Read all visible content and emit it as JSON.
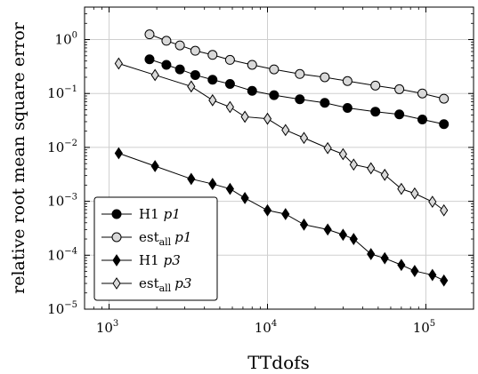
{
  "chart_data": {
    "type": "line",
    "xlabel": "TTdofs",
    "ylabel": "relative root mean square error",
    "xscale": "log",
    "yscale": "log",
    "xlim": [
      700,
      200000
    ],
    "ylim": [
      1e-05,
      4
    ],
    "grid": true,
    "legend_position": "bottom-left",
    "x_ticks": [
      {
        "value": 1000,
        "base": "10",
        "exp": "3"
      },
      {
        "value": 10000,
        "base": "10",
        "exp": "4"
      },
      {
        "value": 100000,
        "base": "10",
        "exp": "5"
      }
    ],
    "y_ticks": [
      {
        "value": 1,
        "base": "10",
        "exp": "0"
      },
      {
        "value": 0.1,
        "base": "10",
        "exp": "−1"
      },
      {
        "value": 0.01,
        "base": "10",
        "exp": "−2"
      },
      {
        "value": 0.001,
        "base": "10",
        "exp": "−3"
      },
      {
        "value": 0.0001,
        "base": "10",
        "exp": "−4"
      },
      {
        "value": 1e-05,
        "base": "10",
        "exp": "−5"
      }
    ],
    "series": [
      {
        "name": "H1 p1",
        "label_main": "H1",
        "label_sub": "",
        "label_italic": "p1",
        "marker": "circle",
        "fill": "#000000",
        "x": [
          1800,
          2300,
          2800,
          3500,
          4500,
          5800,
          8000,
          11000,
          16000,
          23000,
          32000,
          48000,
          68000,
          95000,
          130000
        ],
        "y": [
          0.43,
          0.34,
          0.28,
          0.22,
          0.18,
          0.15,
          0.112,
          0.093,
          0.078,
          0.067,
          0.054,
          0.046,
          0.041,
          0.033,
          0.027
        ]
      },
      {
        "name": "est_all p1",
        "label_main": "est",
        "label_sub": "all",
        "label_italic": "p1",
        "marker": "circle",
        "fill": "#d9d9d9",
        "x": [
          1800,
          2300,
          2800,
          3500,
          4500,
          5800,
          8000,
          11000,
          16000,
          23000,
          32000,
          48000,
          68000,
          95000,
          130000
        ],
        "y": [
          1.25,
          0.95,
          0.78,
          0.62,
          0.52,
          0.42,
          0.34,
          0.28,
          0.23,
          0.2,
          0.17,
          0.14,
          0.12,
          0.1,
          0.08
        ]
      },
      {
        "name": "H1 p3",
        "label_main": "H1",
        "label_sub": "",
        "label_italic": "p3",
        "marker": "diamond",
        "fill": "#000000",
        "x": [
          1150,
          1950,
          3300,
          4500,
          5800,
          7200,
          10000,
          13000,
          17000,
          24000,
          30000,
          35000,
          45000,
          55000,
          70000,
          85000,
          110000,
          130000
        ],
        "y": [
          0.0078,
          0.0045,
          0.0026,
          0.0021,
          0.0017,
          0.00115,
          0.00068,
          0.00058,
          0.00037,
          0.0003,
          0.00024,
          0.0002,
          0.000105,
          8.8e-05,
          6.6e-05,
          5.1e-05,
          4.3e-05,
          3.4e-05
        ]
      },
      {
        "name": "est_all p3",
        "label_main": "est",
        "label_sub": "all",
        "label_italic": "p3",
        "marker": "diamond",
        "fill": "#d9d9d9",
        "x": [
          1150,
          1950,
          3300,
          4500,
          5800,
          7200,
          10000,
          13000,
          17000,
          24000,
          30000,
          35000,
          45000,
          55000,
          70000,
          85000,
          110000,
          130000
        ],
        "y": [
          0.36,
          0.22,
          0.135,
          0.075,
          0.056,
          0.037,
          0.034,
          0.021,
          0.015,
          0.0097,
          0.0075,
          0.0048,
          0.0041,
          0.0031,
          0.0017,
          0.0014,
          0.00098,
          0.00068
        ]
      }
    ]
  }
}
